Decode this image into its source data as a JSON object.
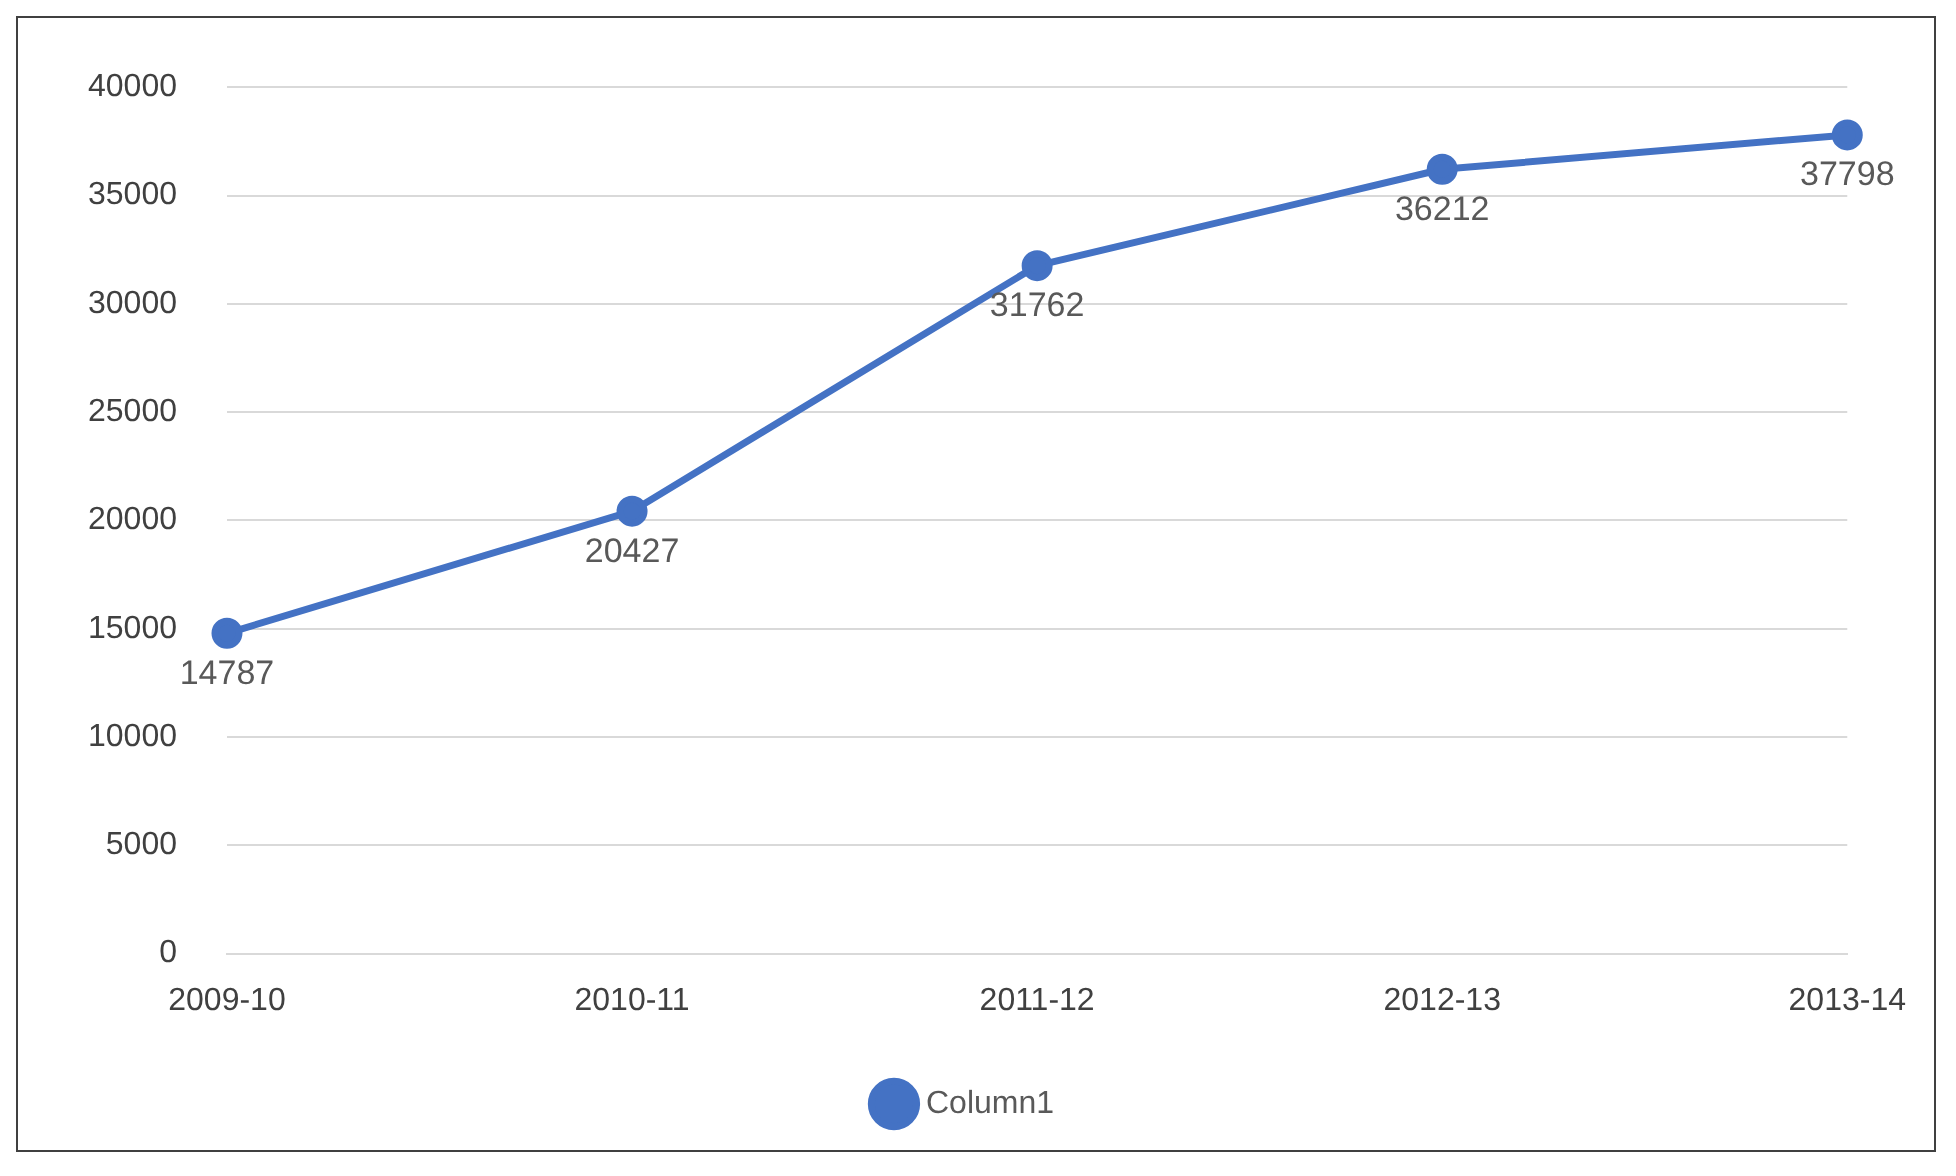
{
  "chart_data": {
    "type": "line",
    "categories": [
      "2009-10",
      "2010-11",
      "2011-12",
      "2012-13",
      "2013-14"
    ],
    "series": [
      {
        "name": "Column1",
        "color": "#4472c4",
        "values": [
          14787,
          20427,
          31762,
          36212,
          37798
        ]
      }
    ],
    "ylim": [
      0,
      40000
    ],
    "yticks": [
      0,
      5000,
      10000,
      15000,
      20000,
      25000,
      30000,
      35000,
      40000
    ],
    "grid": "y",
    "legend": "bottom",
    "marker": "circle",
    "line_style": "solid",
    "data_labels": true
  }
}
